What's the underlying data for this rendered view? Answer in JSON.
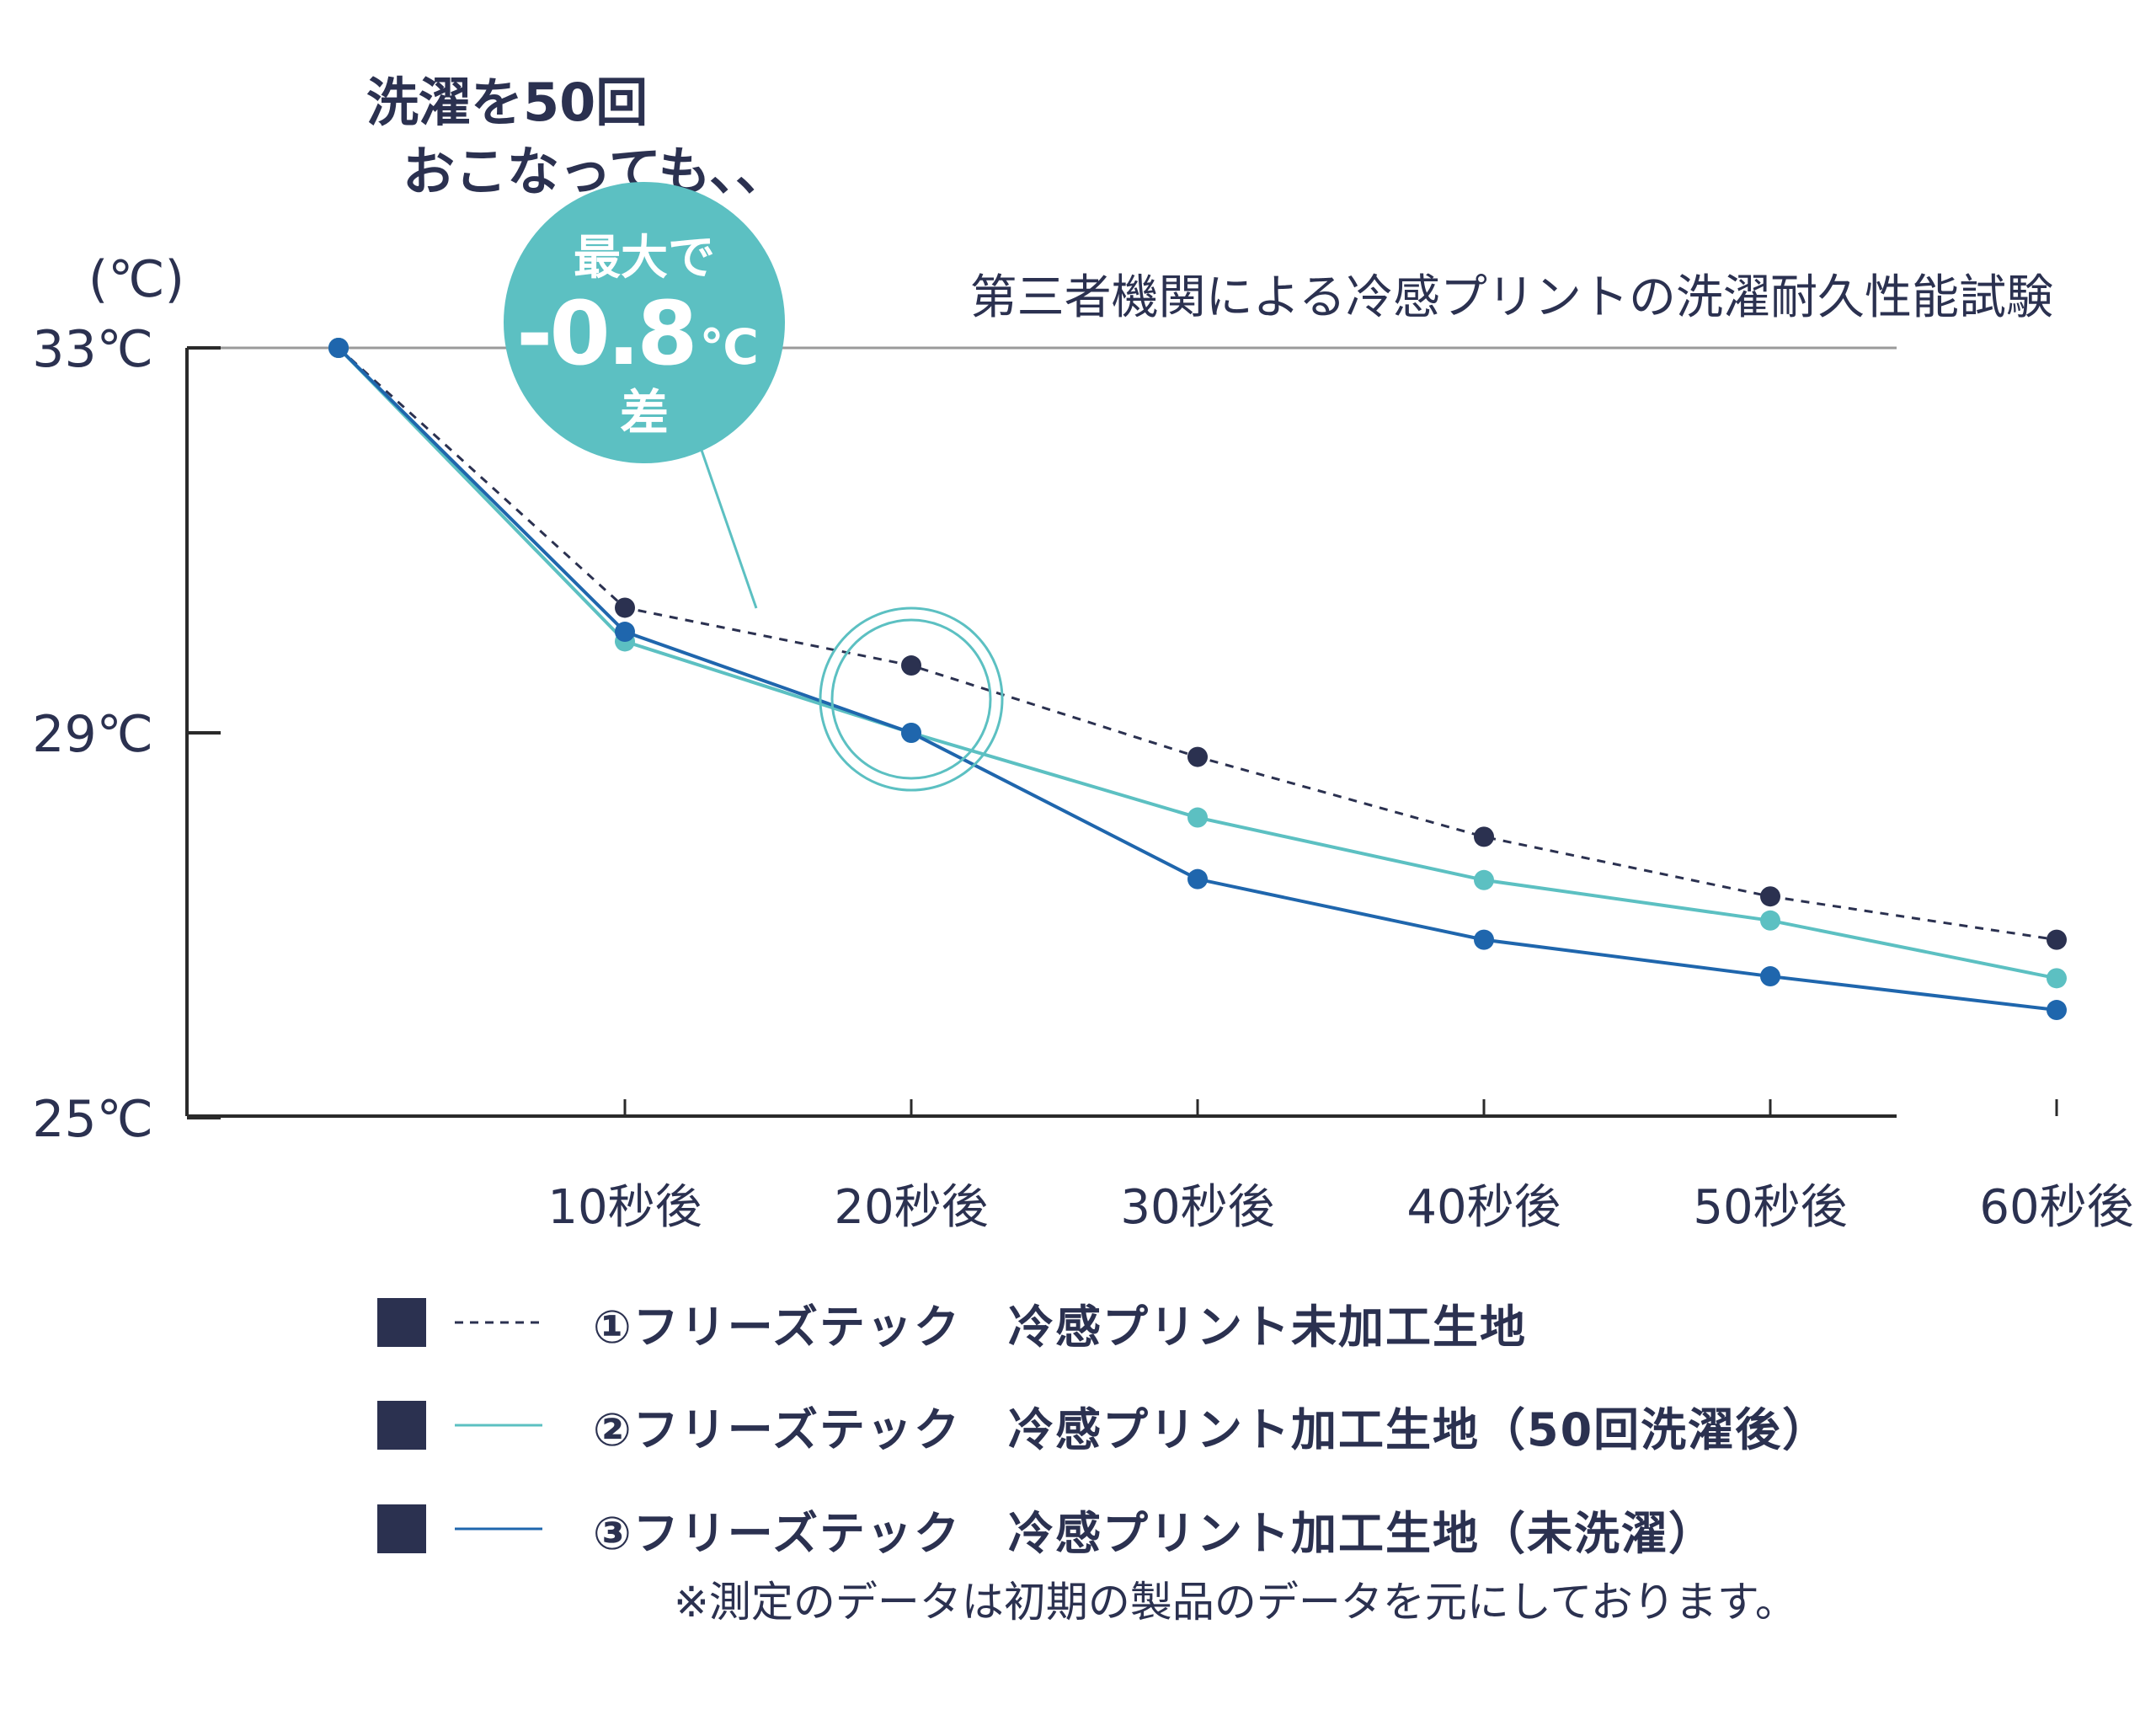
{
  "chart_data": {
    "type": "line",
    "title": "第三者機関による冷感プリントの洗濯耐久性能試験",
    "ylabel": "(℃)",
    "ylim": [
      25,
      33
    ],
    "y_ticks": [
      "33℃",
      "29℃",
      "25℃"
    ],
    "categories": [
      "",
      "10秒後",
      "20秒後",
      "30秒後",
      "40秒後",
      "50秒後",
      "60秒後"
    ],
    "series": [
      {
        "name": "①フリーズテック　冷感プリント未加工生地",
        "color": "#2b3150",
        "dashed": true,
        "values": [
          33.0,
          30.3,
          29.7,
          28.75,
          27.92,
          27.3,
          26.85
        ]
      },
      {
        "name": "②フリーズテック　冷感プリント加工生地（50回洗濯後）",
        "color": "#5cc0c2",
        "dashed": false,
        "values": [
          33.0,
          29.95,
          29.0,
          28.12,
          27.47,
          27.05,
          26.45
        ]
      },
      {
        "name": "③フリーズテック　冷感プリント加工生地（未洗濯）",
        "color": "#1f66ad",
        "dashed": false,
        "values": [
          33.0,
          30.05,
          29.0,
          27.48,
          26.85,
          26.47,
          26.12
        ]
      }
    ],
    "grid": false,
    "legend_position": "bottom",
    "annotations": {
      "headline_line1": "洗濯を50回",
      "headline_line2": "おこなっても、、",
      "bubble_top": "最大で",
      "bubble_value": "-0.8",
      "bubble_unit": "℃",
      "bubble_bottom": "差",
      "highlight_index": 2
    }
  },
  "note": "※測定のデータは初期の製品のデータを元にしております。"
}
